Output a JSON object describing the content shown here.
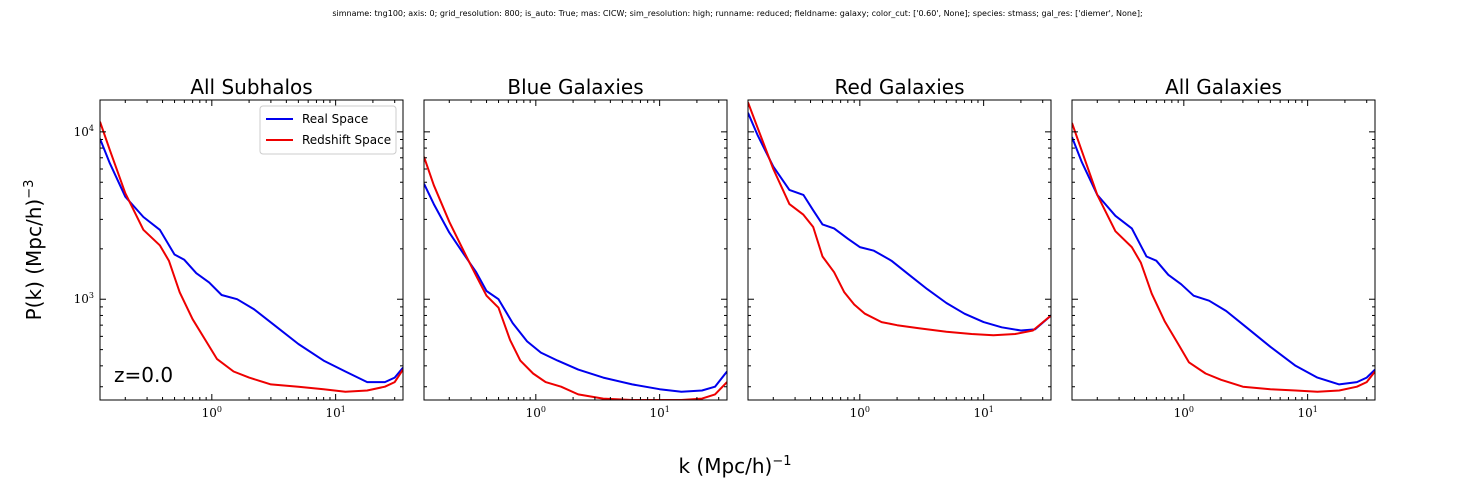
{
  "suptitle": "simname: tng100; axis: 0; grid_resolution: 800; is_auto: True; mas: CICW; sim_resolution: high; runname: reduced; fieldname: galaxy; color_cut: ['0.60', None]; species: stmass; gal_res: ['diemer', None];",
  "xlabel_base": "k (Mpc/h)",
  "xlabel_exp": "−1",
  "ylabel_base": "P(k) (Mpc/h)",
  "ylabel_exp": "−3",
  "colors": {
    "real": "#0000ee",
    "redshift": "#ee0000"
  },
  "chart_data": [
    {
      "type": "line",
      "title": "All Subhalos",
      "annotation": "z=0.0",
      "legend": {
        "placement": "top-right",
        "entries": [
          "Real Space",
          "Redshift Space"
        ]
      },
      "xscale": "log",
      "yscale": "log",
      "xlim": [
        0.125,
        35
      ],
      "ylim": [
        250,
        15500
      ],
      "xticks": [
        {
          "value": 1,
          "base": "10",
          "exp": "0"
        },
        {
          "value": 10,
          "base": "10",
          "exp": "1"
        }
      ],
      "yticks": [
        {
          "value": 1000,
          "base": "10",
          "exp": "3"
        },
        {
          "value": 10000,
          "base": "10",
          "exp": "4"
        }
      ],
      "series": [
        {
          "name": "Real Space",
          "color": "#0000ee",
          "x": [
            0.125,
            0.15,
            0.2,
            0.28,
            0.38,
            0.5,
            0.6,
            0.75,
            0.95,
            1.2,
            1.6,
            2.2,
            3.2,
            5,
            8,
            12,
            18,
            25,
            30,
            35
          ],
          "y": [
            9100,
            6500,
            4100,
            3100,
            2600,
            1850,
            1720,
            1430,
            1260,
            1060,
            1000,
            870,
            700,
            540,
            430,
            370,
            320,
            320,
            340,
            390
          ]
        },
        {
          "name": "Redshift Space",
          "color": "#ee0000",
          "x": [
            0.125,
            0.15,
            0.2,
            0.28,
            0.38,
            0.45,
            0.55,
            0.7,
            0.9,
            1.1,
            1.5,
            2,
            3,
            5,
            8,
            12,
            18,
            25,
            30,
            35
          ],
          "y": [
            11500,
            7800,
            4300,
            2600,
            2100,
            1700,
            1100,
            760,
            560,
            440,
            370,
            340,
            310,
            300,
            290,
            280,
            285,
            300,
            320,
            380
          ]
        }
      ]
    },
    {
      "type": "line",
      "title": "Blue Galaxies",
      "xscale": "log",
      "yscale": "log",
      "xlim": [
        0.125,
        35
      ],
      "ylim": [
        250,
        15500
      ],
      "xticks": [
        {
          "value": 1,
          "base": "10",
          "exp": "0"
        },
        {
          "value": 10,
          "base": "10",
          "exp": "1"
        }
      ],
      "yticks": [],
      "series": [
        {
          "name": "Real Space",
          "color": "#0000ee",
          "x": [
            0.125,
            0.15,
            0.2,
            0.27,
            0.33,
            0.4,
            0.5,
            0.65,
            0.85,
            1.1,
            1.5,
            2.2,
            3.5,
            6,
            10,
            15,
            22,
            28,
            35
          ],
          "y": [
            4900,
            3700,
            2500,
            1800,
            1450,
            1120,
            1000,
            720,
            560,
            480,
            430,
            380,
            340,
            310,
            290,
            280,
            285,
            300,
            370
          ]
        },
        {
          "name": "Redshift Space",
          "color": "#ee0000",
          "x": [
            0.125,
            0.15,
            0.2,
            0.27,
            0.33,
            0.4,
            0.5,
            0.62,
            0.75,
            0.95,
            1.2,
            1.6,
            2.2,
            3.5,
            6,
            10,
            15,
            22,
            28,
            35
          ],
          "y": [
            7100,
            4800,
            2900,
            1850,
            1380,
            1050,
            890,
            570,
            430,
            360,
            320,
            300,
            270,
            255,
            250,
            250,
            250,
            255,
            270,
            320
          ]
        }
      ]
    },
    {
      "type": "line",
      "title": "Red Galaxies",
      "xscale": "log",
      "yscale": "log",
      "xlim": [
        0.125,
        35
      ],
      "ylim": [
        250,
        15500
      ],
      "xticks": [
        {
          "value": 1,
          "base": "10",
          "exp": "0"
        },
        {
          "value": 10,
          "base": "10",
          "exp": "1"
        }
      ],
      "yticks": [],
      "series": [
        {
          "name": "Real Space",
          "color": "#0000ee",
          "x": [
            0.125,
            0.15,
            0.2,
            0.27,
            0.35,
            0.42,
            0.5,
            0.62,
            0.8,
            1.0,
            1.3,
            1.8,
            2.5,
            3.5,
            5,
            7,
            10,
            14,
            20,
            26,
            35
          ],
          "y": [
            13000,
            9500,
            6200,
            4500,
            4200,
            3400,
            2800,
            2650,
            2300,
            2050,
            1950,
            1700,
            1400,
            1150,
            950,
            820,
            730,
            680,
            650,
            660,
            800
          ]
        },
        {
          "name": "Redshift Space",
          "color": "#ee0000",
          "x": [
            0.125,
            0.15,
            0.2,
            0.27,
            0.35,
            0.42,
            0.5,
            0.62,
            0.75,
            0.9,
            1.1,
            1.5,
            2,
            3,
            5,
            8,
            12,
            18,
            25,
            35
          ],
          "y": [
            15000,
            10500,
            6000,
            3700,
            3200,
            2700,
            1800,
            1450,
            1100,
            930,
            820,
            730,
            700,
            670,
            640,
            620,
            610,
            620,
            650,
            800
          ]
        }
      ]
    },
    {
      "type": "line",
      "title": "All Galaxies",
      "xscale": "log",
      "yscale": "log",
      "xlim": [
        0.125,
        35
      ],
      "ylim": [
        250,
        15500
      ],
      "xticks": [
        {
          "value": 1,
          "base": "10",
          "exp": "0"
        },
        {
          "value": 10,
          "base": "10",
          "exp": "1"
        }
      ],
      "yticks": [],
      "series": [
        {
          "name": "Real Space",
          "color": "#0000ee",
          "x": [
            0.125,
            0.15,
            0.2,
            0.28,
            0.38,
            0.5,
            0.6,
            0.75,
            0.95,
            1.2,
            1.6,
            2.2,
            3.2,
            5,
            8,
            12,
            18,
            25,
            30,
            35
          ],
          "y": [
            9300,
            6600,
            4200,
            3150,
            2650,
            1800,
            1700,
            1400,
            1230,
            1050,
            980,
            850,
            680,
            520,
            400,
            340,
            310,
            320,
            340,
            380
          ]
        },
        {
          "name": "Redshift Space",
          "color": "#ee0000",
          "x": [
            0.125,
            0.15,
            0.2,
            0.28,
            0.38,
            0.45,
            0.55,
            0.7,
            0.9,
            1.1,
            1.5,
            2,
            3,
            5,
            8,
            12,
            18,
            25,
            30,
            35
          ],
          "y": [
            11300,
            7700,
            4200,
            2550,
            2050,
            1650,
            1080,
            740,
            540,
            420,
            360,
            330,
            300,
            290,
            285,
            280,
            285,
            300,
            320,
            370
          ]
        }
      ]
    }
  ]
}
